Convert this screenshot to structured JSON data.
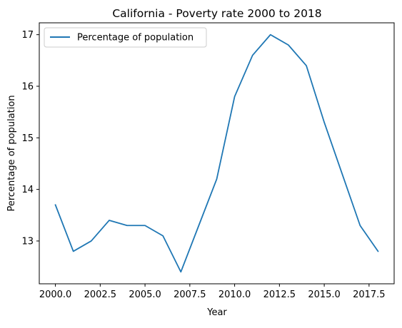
{
  "chart_data": {
    "type": "line",
    "title": "California - Poverty rate 2000 to 2018",
    "xlabel": "Year",
    "ylabel": "Percentage of population",
    "x": [
      2000,
      2001,
      2002,
      2003,
      2004,
      2005,
      2006,
      2007,
      2008,
      2009,
      2010,
      2011,
      2012,
      2013,
      2014,
      2015,
      2016,
      2017,
      2018
    ],
    "series": [
      {
        "name": "Percentage of population",
        "color": "#1f77b4",
        "values": [
          13.7,
          12.8,
          13.0,
          13.4,
          13.3,
          13.3,
          13.1,
          12.4,
          13.3,
          14.2,
          15.8,
          16.6,
          17.0,
          16.8,
          16.4,
          15.3,
          14.3,
          13.3,
          12.8
        ]
      }
    ],
    "xlim": [
      1999.1,
      2018.9
    ],
    "ylim": [
      12.17,
      17.23
    ],
    "xticks": [
      2000.0,
      2002.5,
      2005.0,
      2007.5,
      2010.0,
      2012.5,
      2015.0,
      2017.5
    ],
    "xtick_labels": [
      "2000.0",
      "2002.5",
      "2005.0",
      "2007.5",
      "2010.0",
      "2012.5",
      "2015.0",
      "2017.5"
    ],
    "yticks": [
      13,
      14,
      15,
      16,
      17
    ],
    "ytick_labels": [
      "13",
      "14",
      "15",
      "16",
      "17"
    ],
    "grid": false,
    "legend_position": "upper-left"
  }
}
